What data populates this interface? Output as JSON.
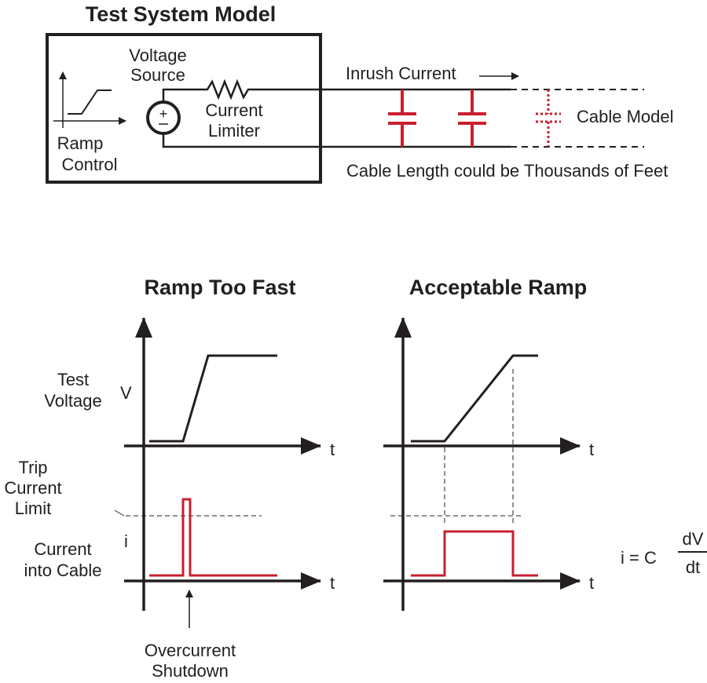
{
  "top": {
    "title": "Test System Model",
    "voltage_source": [
      "Voltage",
      "Source"
    ],
    "current_limiter": [
      "Current",
      "Limiter"
    ],
    "ramp_control": [
      "Ramp",
      "Control"
    ],
    "inrush_current": "Inrush Current",
    "cable_model": "Cable Model",
    "cable_length": "Cable Length could be Thousands of Feet"
  },
  "left_chart": {
    "title": "Ramp Too Fast",
    "voltage_label": [
      "Test",
      "Voltage"
    ],
    "v_axis": "V",
    "i_axis": "i",
    "t_axis": "t",
    "trip_label": [
      "Trip",
      "Current",
      "Limit"
    ],
    "current_label": [
      "Current",
      "into Cable"
    ],
    "shutdown_label": [
      "Overcurrent",
      "Shutdown"
    ]
  },
  "right_chart": {
    "title": "Acceptable Ramp",
    "t_axis": "t"
  },
  "equation": {
    "lhs": "i = C",
    "num": "dV",
    "den": "dt"
  },
  "colors": {
    "current": "#c8202f",
    "line": "#231f20"
  }
}
